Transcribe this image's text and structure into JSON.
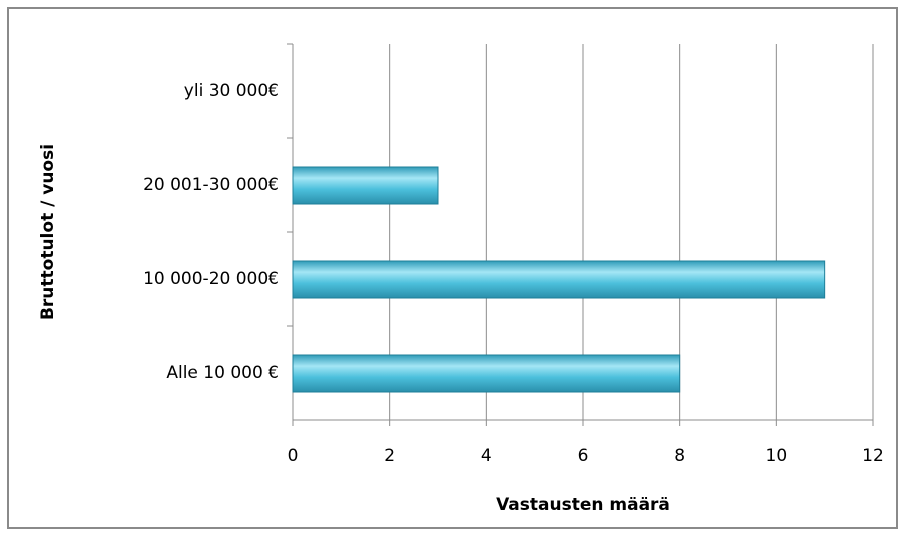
{
  "chart_data": {
    "type": "bar",
    "orientation": "horizontal",
    "categories": [
      "yli 30 000€",
      "20 001-30 000€",
      "10 000-20 000€",
      "Alle 10 000 €"
    ],
    "values": [
      0,
      3,
      11,
      8
    ],
    "color": "#3fb0cc",
    "xlabel": "Vastausten määrä",
    "ylabel": "Bruttotulot / vuosi",
    "xlim": [
      0,
      12
    ],
    "xticks": [
      0,
      2,
      4,
      6,
      8,
      10,
      12
    ],
    "grid": true
  }
}
